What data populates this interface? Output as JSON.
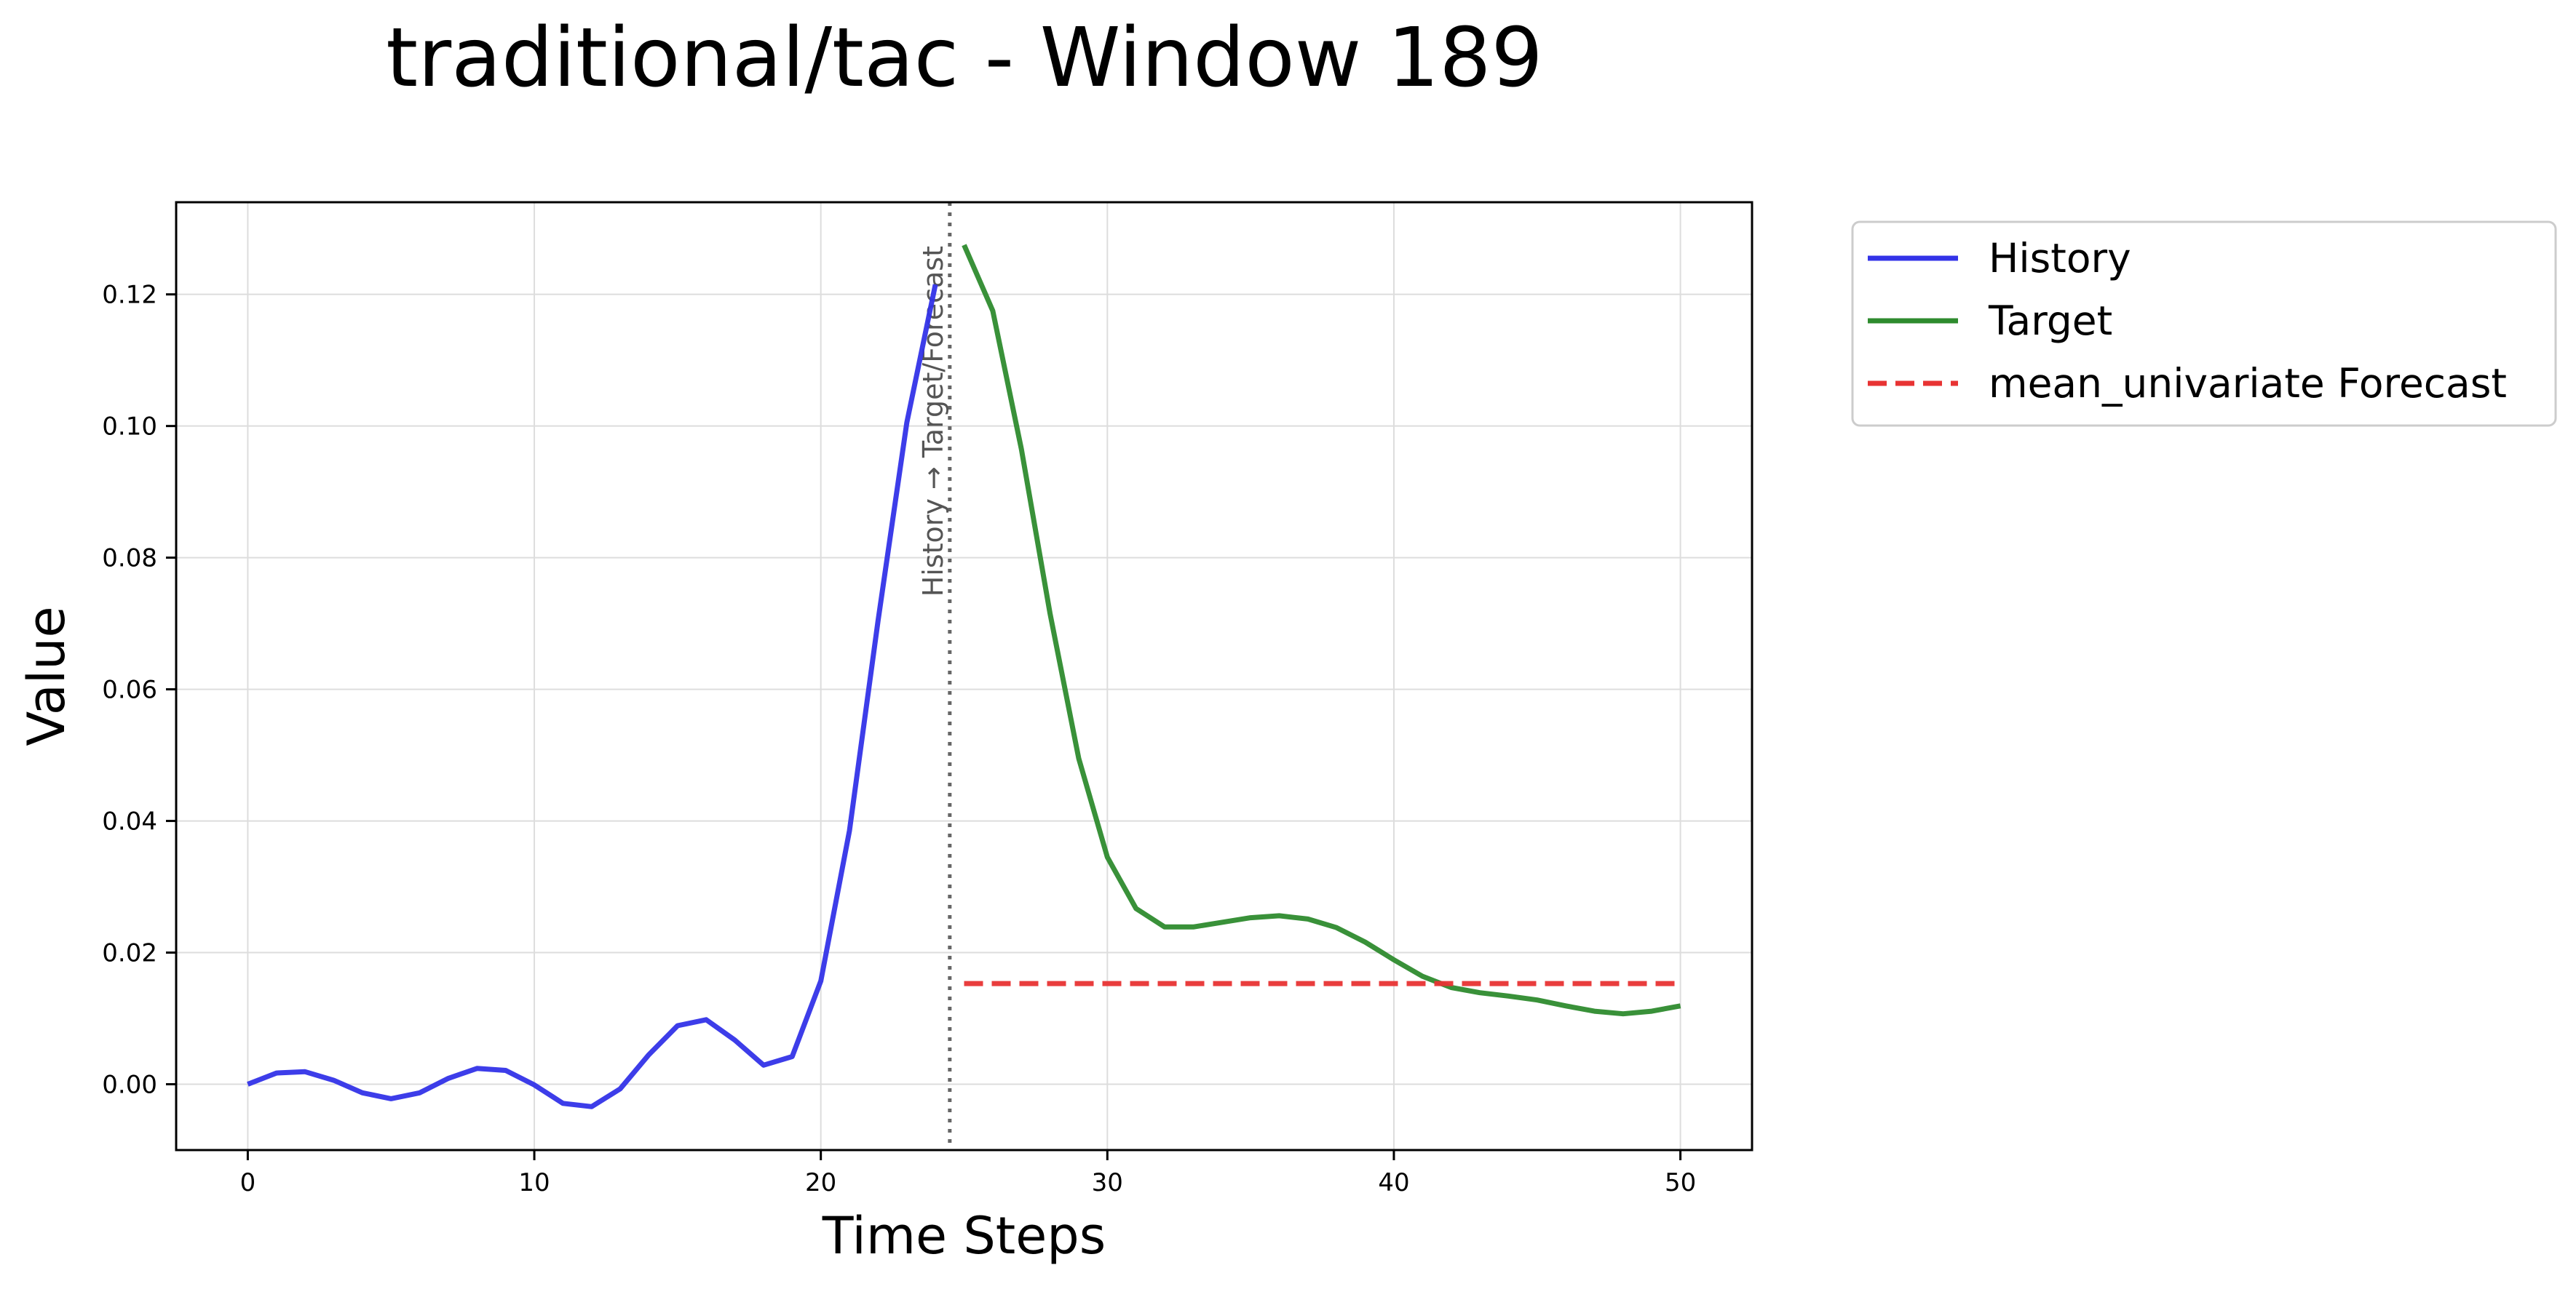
{
  "chart_data": {
    "type": "line",
    "title": "traditional/tac - Window 189",
    "xlabel": "Time Steps",
    "ylabel": "Value",
    "xlim": [
      -2.5,
      52.5
    ],
    "ylim": [
      -0.01,
      0.134
    ],
    "xticks": [
      0,
      10,
      20,
      30,
      40,
      50
    ],
    "xtick_labels": [
      "0",
      "10",
      "20",
      "30",
      "40",
      "50"
    ],
    "yticks": [
      0.0,
      0.02,
      0.04,
      0.06,
      0.08,
      0.1,
      0.12
    ],
    "ytick_labels": [
      "0.00",
      "0.02",
      "0.04",
      "0.06",
      "0.08",
      "0.10",
      "0.12"
    ],
    "grid": true,
    "legend_position": "outside-top-right",
    "divider": {
      "x": 24.5,
      "label": "History → Target/Forecast",
      "color": "#666666"
    },
    "series": [
      {
        "name": "History",
        "color": "#3333e8",
        "style": "solid",
        "x": [
          0,
          1,
          2,
          3,
          4,
          5,
          6,
          7,
          8,
          9,
          10,
          11,
          12,
          13,
          14,
          15,
          16,
          17,
          18,
          19,
          20,
          21,
          22,
          23,
          24
        ],
        "values": [
          0.0,
          0.0017,
          0.0019,
          0.0006,
          -0.0013,
          -0.0022,
          -0.0013,
          0.0009,
          0.0024,
          0.0021,
          -0.0001,
          -0.0029,
          -0.0034,
          -0.0007,
          0.0045,
          0.0089,
          0.0098,
          0.0067,
          0.0029,
          0.0042,
          0.0157,
          0.0385,
          0.0705,
          0.1005,
          0.1215
        ]
      },
      {
        "name": "Target",
        "color": "#2e8b2e",
        "style": "solid",
        "x": [
          25,
          26,
          27,
          28,
          29,
          30,
          31,
          32,
          33,
          34,
          35,
          36,
          37,
          38,
          39,
          40,
          41,
          42,
          43,
          44,
          45,
          46,
          47,
          48,
          49,
          50
        ],
        "values": [
          0.1275,
          0.1175,
          0.0965,
          0.0715,
          0.0495,
          0.0345,
          0.0267,
          0.0239,
          0.0239,
          0.0246,
          0.0253,
          0.0256,
          0.0251,
          0.0238,
          0.0216,
          0.0189,
          0.0164,
          0.0147,
          0.0139,
          0.0134,
          0.0128,
          0.0119,
          0.0111,
          0.0107,
          0.0111,
          0.0119
        ]
      },
      {
        "name": "mean_univariate Forecast",
        "color": "#e83333",
        "style": "dashed",
        "x": [
          25,
          26,
          27,
          28,
          29,
          30,
          31,
          32,
          33,
          34,
          35,
          36,
          37,
          38,
          39,
          40,
          41,
          42,
          43,
          44,
          45,
          46,
          47,
          48,
          49,
          50
        ],
        "values": [
          0.0153,
          0.0153,
          0.0153,
          0.0153,
          0.0153,
          0.0153,
          0.0153,
          0.0153,
          0.0153,
          0.0153,
          0.0153,
          0.0153,
          0.0153,
          0.0153,
          0.0153,
          0.0153,
          0.0153,
          0.0153,
          0.0153,
          0.0153,
          0.0153,
          0.0153,
          0.0153,
          0.0153,
          0.0153,
          0.0153
        ]
      }
    ]
  }
}
